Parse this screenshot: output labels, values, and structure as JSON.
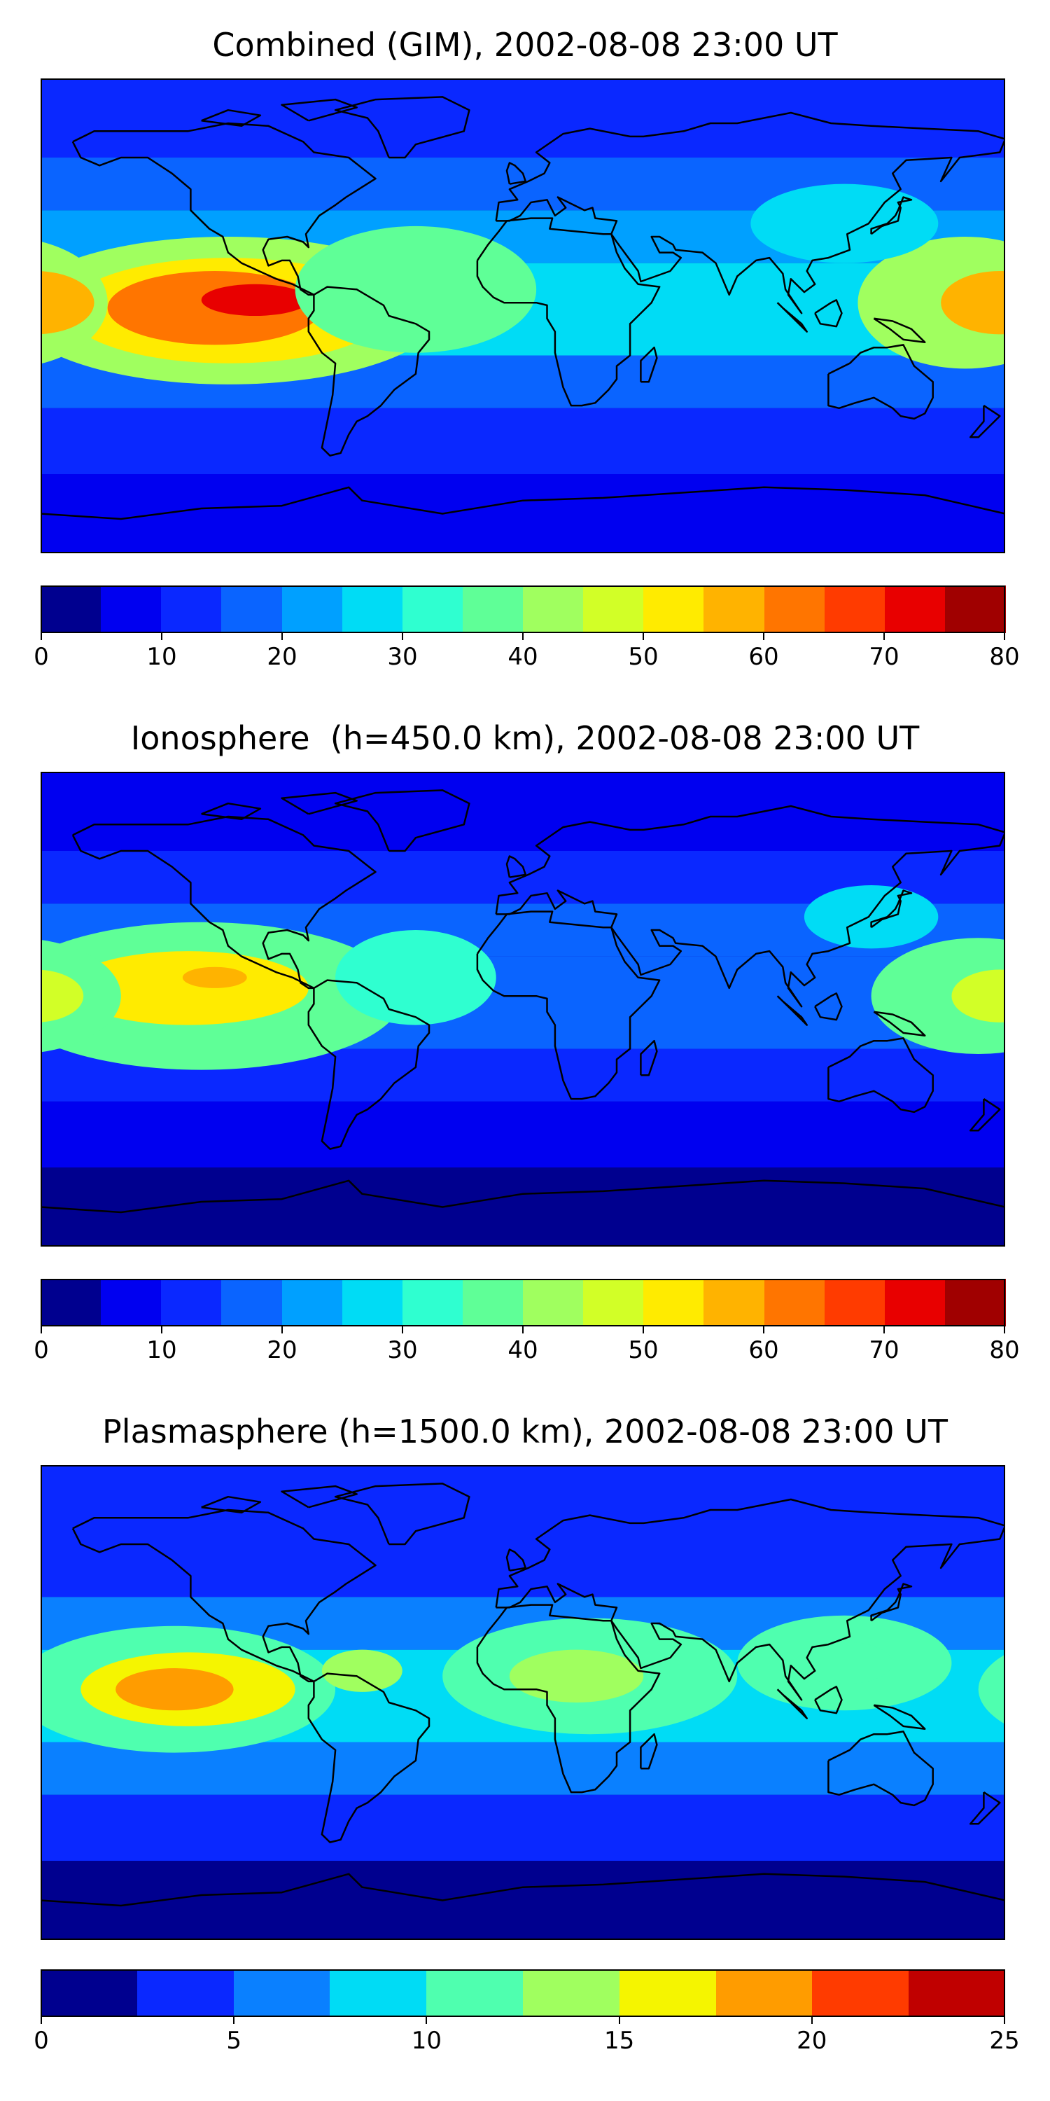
{
  "panels": [
    {
      "title": "Combined (GIM), 2002-08-08 23:00 UT",
      "colorbar": {
        "min": 0,
        "max": 80,
        "levels": [
          0,
          5,
          10,
          15,
          20,
          25,
          30,
          35,
          40,
          45,
          50,
          55,
          60,
          65,
          70,
          75,
          80
        ],
        "colors": [
          "#00008f",
          "#0000f0",
          "#0a28ff",
          "#0a64ff",
          "#00a0ff",
          "#00dcf5",
          "#2fffd0",
          "#5fff97",
          "#a0ff5f",
          "#d2ff27",
          "#ffeb00",
          "#ffb300",
          "#ff7500",
          "#ff3b00",
          "#e80000",
          "#a00000"
        ],
        "tick_labels": [
          "0",
          "10",
          "20",
          "30",
          "40",
          "50",
          "60",
          "70",
          "80"
        ]
      },
      "blobs": [
        {
          "lon": -110,
          "lat": 2,
          "rx": 80,
          "ry": 28,
          "v": 40
        },
        {
          "lon": -110,
          "lat": 2,
          "rx": 60,
          "ry": 20,
          "v": 52
        },
        {
          "lon": -115,
          "lat": 3,
          "rx": 40,
          "ry": 14,
          "v": 62
        },
        {
          "lon": -100,
          "lat": 6,
          "rx": 20,
          "ry": 6,
          "v": 72
        },
        {
          "lon": -40,
          "lat": 10,
          "rx": 45,
          "ry": 24,
          "v": 35
        },
        {
          "lon": 165,
          "lat": 5,
          "rx": 40,
          "ry": 25,
          "v": 40
        },
        {
          "lon": 178,
          "lat": 5,
          "rx": 22,
          "ry": 12,
          "v": 55
        },
        {
          "lon": 120,
          "lat": 35,
          "rx": 35,
          "ry": 15,
          "v": 28
        }
      ],
      "base": 20
    },
    {
      "title": "Ionosphere  (h=450.0 km), 2002-08-08 23:00 UT",
      "colorbar": {
        "min": 0,
        "max": 80,
        "levels": [
          0,
          5,
          10,
          15,
          20,
          25,
          30,
          35,
          40,
          45,
          50,
          55,
          60,
          65,
          70,
          75,
          80
        ],
        "colors": [
          "#00008f",
          "#0000f0",
          "#0a28ff",
          "#0a64ff",
          "#00a0ff",
          "#00dcf5",
          "#2fffd0",
          "#5fff97",
          "#a0ff5f",
          "#d2ff27",
          "#ffeb00",
          "#ffb300",
          "#ff7500",
          "#ff3b00",
          "#e80000",
          "#a00000"
        ],
        "tick_labels": [
          "0",
          "10",
          "20",
          "30",
          "40",
          "50",
          "60",
          "70",
          "80"
        ]
      },
      "blobs": [
        {
          "lon": -120,
          "lat": 5,
          "rx": 75,
          "ry": 28,
          "v": 38
        },
        {
          "lon": -125,
          "lat": 8,
          "rx": 45,
          "ry": 14,
          "v": 50
        },
        {
          "lon": -115,
          "lat": 12,
          "rx": 12,
          "ry": 4,
          "v": 56
        },
        {
          "lon": -40,
          "lat": 12,
          "rx": 30,
          "ry": 18,
          "v": 32
        },
        {
          "lon": 170,
          "lat": 5,
          "rx": 40,
          "ry": 22,
          "v": 35
        },
        {
          "lon": 178,
          "lat": 5,
          "rx": 18,
          "ry": 10,
          "v": 48
        },
        {
          "lon": 130,
          "lat": 35,
          "rx": 25,
          "ry": 12,
          "v": 26
        }
      ],
      "base": 15
    },
    {
      "title": "Plasmasphere (h=1500.0 km), 2002-08-08 23:00 UT",
      "colorbar": {
        "min": 0,
        "max": 25,
        "levels": [
          0,
          2.5,
          5,
          7.5,
          10,
          12.5,
          15,
          17.5,
          20,
          22.5,
          25
        ],
        "colors": [
          "#00008f",
          "#0a28ff",
          "#0a80ff",
          "#00dcf5",
          "#4fffaf",
          "#a0ff5f",
          "#f5f500",
          "#ff9c00",
          "#ff3b00",
          "#c00000"
        ],
        "tick_labels": [
          "0",
          "5",
          "10",
          "15",
          "20",
          "25"
        ]
      },
      "blobs": [
        {
          "lon": -130,
          "lat": 5,
          "rx": 60,
          "ry": 24,
          "v": 11
        },
        {
          "lon": -125,
          "lat": 5,
          "rx": 40,
          "ry": 14,
          "v": 15
        },
        {
          "lon": -130,
          "lat": 5,
          "rx": 22,
          "ry": 8,
          "v": 18
        },
        {
          "lon": -60,
          "lat": 12,
          "rx": 15,
          "ry": 8,
          "v": 14
        },
        {
          "lon": 25,
          "lat": 10,
          "rx": 55,
          "ry": 22,
          "v": 11
        },
        {
          "lon": 20,
          "lat": 10,
          "rx": 25,
          "ry": 10,
          "v": 13
        },
        {
          "lon": 120,
          "lat": 15,
          "rx": 40,
          "ry": 18,
          "v": 10
        },
        {
          "lon": 120,
          "lat": 15,
          "rx": 18,
          "ry": 8,
          "v": 12
        }
      ],
      "base": 6
    }
  ]
}
